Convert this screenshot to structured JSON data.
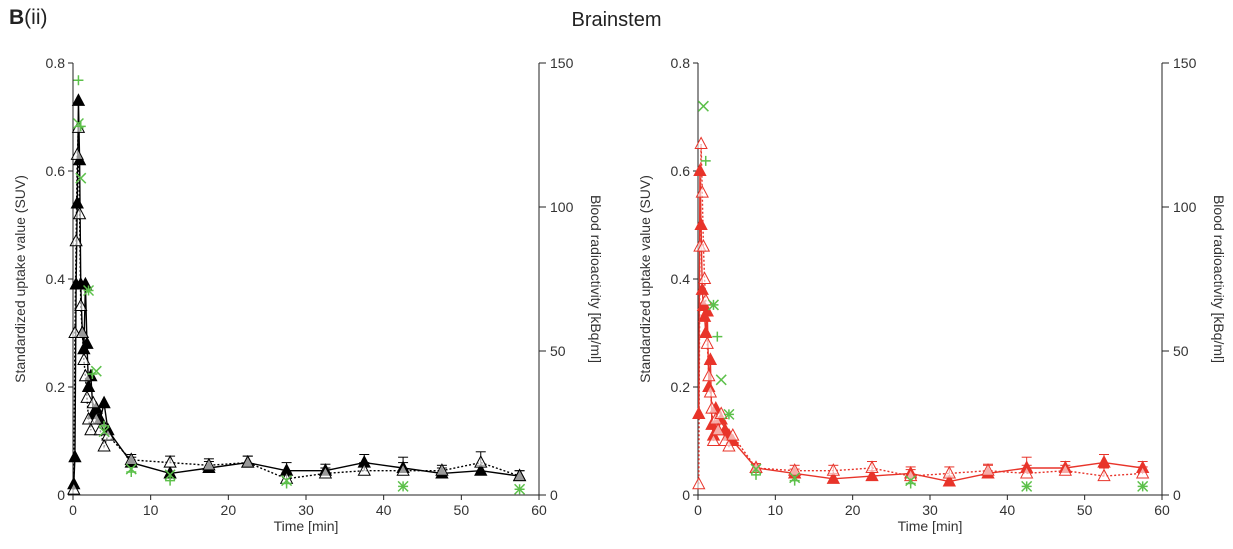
{
  "panel": {
    "label_bold": "B",
    "label_rest": "(ii)",
    "title": "Brainstem"
  },
  "chart_data": [
    {
      "type": "line",
      "xlabel": "Time [min]",
      "ylabel": "Standardized uptake value (SUV)",
      "y2label": "Blood radioactivity [kBq/ml]",
      "xlim": [
        0,
        60
      ],
      "ylim": [
        0,
        0.8
      ],
      "y2lim": [
        0,
        150
      ],
      "xticks": [
        "0",
        "10",
        "20",
        "30",
        "40",
        "50",
        "60"
      ],
      "yticks": [
        "0",
        "0.2",
        "0.4",
        "0.6",
        "0.8"
      ],
      "y2ticks": [
        "0",
        "50",
        "100",
        "150"
      ],
      "color": "#000000",
      "blood_color": "#5cc04a",
      "series": [
        {
          "style": "filled-triangle-solid",
          "x": [
            0.1,
            0.25,
            0.4,
            0.55,
            0.7,
            0.85,
            1.0,
            1.2,
            1.4,
            1.6,
            1.8,
            2.0,
            2.3,
            2.6,
            3.0,
            3.5,
            4.0,
            4.5,
            7.5,
            12.5,
            17.5,
            22.5,
            27.5,
            32.5,
            37.5,
            42.5,
            47.5,
            52.5,
            57.5
          ],
          "y": [
            0.02,
            0.07,
            0.39,
            0.54,
            0.73,
            0.62,
            0.39,
            0.3,
            0.27,
            0.39,
            0.28,
            0.2,
            0.22,
            0.15,
            0.16,
            0.14,
            0.17,
            0.12,
            0.06,
            0.04,
            0.05,
            0.06,
            0.045,
            0.045,
            0.06,
            0.05,
            0.04,
            0.045,
            0.035
          ],
          "err": [
            0,
            0,
            0,
            0,
            0,
            0,
            0,
            0,
            0,
            0,
            0,
            0,
            0,
            0,
            0,
            0,
            0,
            0,
            0.01,
            0.012,
            0.012,
            0.012,
            0.015,
            0.012,
            0.015,
            0.02,
            0.01,
            0.01,
            0.01
          ]
        },
        {
          "style": "open-triangle-dotted",
          "x": [
            0.1,
            0.25,
            0.4,
            0.55,
            0.7,
            0.85,
            1.0,
            1.2,
            1.4,
            1.6,
            1.8,
            2.0,
            2.3,
            2.6,
            3.0,
            3.5,
            4.0,
            4.5,
            7.5,
            12.5,
            17.5,
            22.5,
            27.5,
            32.5,
            37.5,
            42.5,
            47.5,
            52.5,
            57.5
          ],
          "y": [
            0.01,
            0.3,
            0.47,
            0.63,
            0.68,
            0.52,
            0.35,
            0.3,
            0.25,
            0.22,
            0.18,
            0.14,
            0.12,
            0.17,
            0.14,
            0.12,
            0.09,
            0.11,
            0.065,
            0.06,
            0.055,
            0.06,
            0.03,
            0.04,
            0.045,
            0.045,
            0.045,
            0.06,
            0.035
          ],
          "err": [
            0,
            0,
            0,
            0,
            0,
            0,
            0,
            0,
            0,
            0,
            0,
            0,
            0,
            0,
            0,
            0,
            0,
            0,
            0.01,
            0.012,
            0.012,
            0.012,
            0.012,
            0.01,
            0.015,
            0.015,
            0.01,
            0.02,
            0.01
          ]
        }
      ],
      "blood_plus": {
        "x": [
          0.7,
          1.0,
          2.0,
          2.5,
          4.0,
          7.5,
          12.5,
          27.5,
          42.5,
          57.5
        ],
        "y": [
          144,
          128,
          71,
          42,
          24,
          8,
          5,
          4,
          3,
          2
        ]
      },
      "blood_cross": {
        "x": [
          0.7,
          1.0,
          2.0,
          3.0,
          4.0,
          7.5,
          12.5,
          27.5,
          42.5,
          57.5
        ],
        "y": [
          129,
          110,
          71,
          43,
          22,
          9,
          7,
          5,
          3,
          2
        ]
      }
    },
    {
      "type": "line",
      "xlabel": "Time [min]",
      "ylabel": "Standardized uptake value (SUV)",
      "y2label": "Blood radioactivity [kBq/ml]",
      "xlim": [
        0,
        60
      ],
      "ylim": [
        0,
        0.8
      ],
      "y2lim": [
        0,
        150
      ],
      "xticks": [
        "0",
        "10",
        "20",
        "30",
        "40",
        "50",
        "60"
      ],
      "yticks": [
        "0",
        "0.2",
        "0.4",
        "0.6",
        "0.8"
      ],
      "y2ticks": [
        "0",
        "50",
        "100",
        "150"
      ],
      "color": "#e8342a",
      "blood_color": "#5cc04a",
      "series": [
        {
          "style": "filled-triangle-solid",
          "x": [
            0.1,
            0.25,
            0.4,
            0.55,
            0.7,
            0.85,
            1.0,
            1.2,
            1.4,
            1.6,
            1.8,
            2.0,
            2.3,
            2.6,
            3.0,
            3.5,
            4.0,
            4.5,
            7.5,
            12.5,
            17.5,
            22.5,
            27.5,
            32.5,
            37.5,
            42.5,
            47.5,
            52.5,
            57.5
          ],
          "y": [
            0.15,
            0.6,
            0.5,
            0.38,
            0.35,
            0.33,
            0.3,
            0.34,
            0.2,
            0.25,
            0.13,
            0.11,
            0.16,
            0.12,
            0.14,
            0.12,
            0.11,
            0.1,
            0.05,
            0.04,
            0.03,
            0.035,
            0.04,
            0.025,
            0.04,
            0.05,
            0.05,
            0.06,
            0.05
          ],
          "err": [
            0,
            0,
            0,
            0,
            0,
            0,
            0,
            0,
            0,
            0,
            0,
            0,
            0,
            0,
            0,
            0,
            0,
            0,
            0.008,
            0.008,
            0.01,
            0.01,
            0.012,
            0.01,
            0.015,
            0.02,
            0.012,
            0.015,
            0.012
          ]
        },
        {
          "style": "open-triangle-dotted",
          "x": [
            0.1,
            0.25,
            0.4,
            0.55,
            0.7,
            0.85,
            1.0,
            1.2,
            1.4,
            1.6,
            1.8,
            2.0,
            2.3,
            2.6,
            3.0,
            3.5,
            4.0,
            4.5,
            7.5,
            12.5,
            17.5,
            22.5,
            27.5,
            32.5,
            37.5,
            42.5,
            47.5,
            52.5,
            57.5
          ],
          "y": [
            0.02,
            0.46,
            0.65,
            0.56,
            0.46,
            0.4,
            0.36,
            0.28,
            0.22,
            0.19,
            0.16,
            0.1,
            0.14,
            0.12,
            0.15,
            0.1,
            0.09,
            0.11,
            0.05,
            0.045,
            0.045,
            0.05,
            0.035,
            0.04,
            0.045,
            0.04,
            0.045,
            0.035,
            0.04
          ],
          "err": [
            0,
            0,
            0,
            0,
            0,
            0,
            0,
            0,
            0,
            0,
            0,
            0,
            0,
            0,
            0,
            0,
            0,
            0,
            0.008,
            0.01,
            0.01,
            0.012,
            0.012,
            0.012,
            0.012,
            0.015,
            0.01,
            0.015,
            0.012
          ]
        }
      ],
      "blood_plus": {
        "x": [
          1.0,
          2.0,
          2.5,
          4.0,
          7.5,
          12.5,
          27.5,
          42.5,
          57.5
        ],
        "y": [
          116,
          66,
          55,
          28,
          7,
          5,
          4,
          3,
          3
        ]
      },
      "blood_cross": {
        "x": [
          0.7,
          2.0,
          3.0,
          4.0,
          7.5,
          12.5,
          27.5,
          42.5,
          57.5
        ],
        "y": [
          135,
          66,
          40,
          28,
          9,
          6,
          5,
          3,
          3
        ]
      }
    }
  ]
}
